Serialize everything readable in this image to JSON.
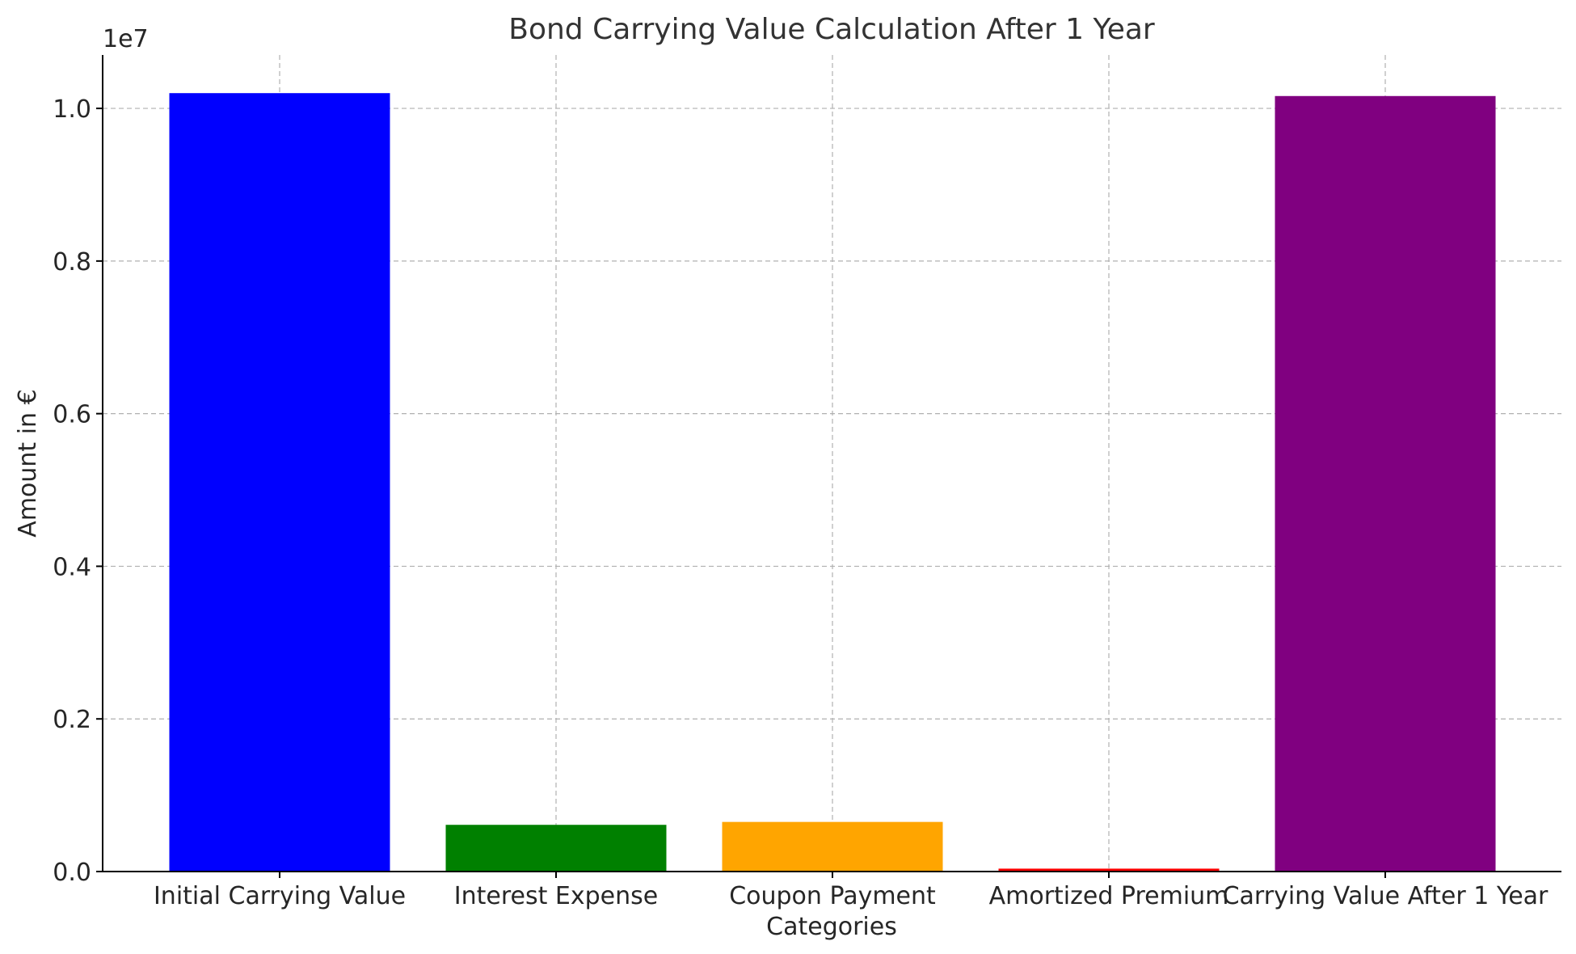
{
  "chart_data": {
    "type": "bar",
    "title": "Bond Carrying Value Calculation After 1 Year",
    "xlabel": "Categories",
    "ylabel": "Amount in €",
    "y_offset_label": "1e7",
    "categories": [
      "Initial Carrying Value",
      "Interest Expense",
      "Coupon Payment",
      "Amortized Premium",
      "Carrying Value After 1 Year"
    ],
    "values": [
      10200000,
      612000,
      650000,
      38000,
      10162000
    ],
    "colors": [
      "#0000ff",
      "#008000",
      "#ffa500",
      "#ff0000",
      "#800080"
    ],
    "ylim": [
      0,
      10700000
    ],
    "yticks": [
      0,
      2000000,
      4000000,
      6000000,
      8000000,
      10000000
    ],
    "ytick_labels": [
      "0.0",
      "0.2",
      "0.4",
      "0.6",
      "0.8",
      "1.0"
    ],
    "grid": true
  }
}
